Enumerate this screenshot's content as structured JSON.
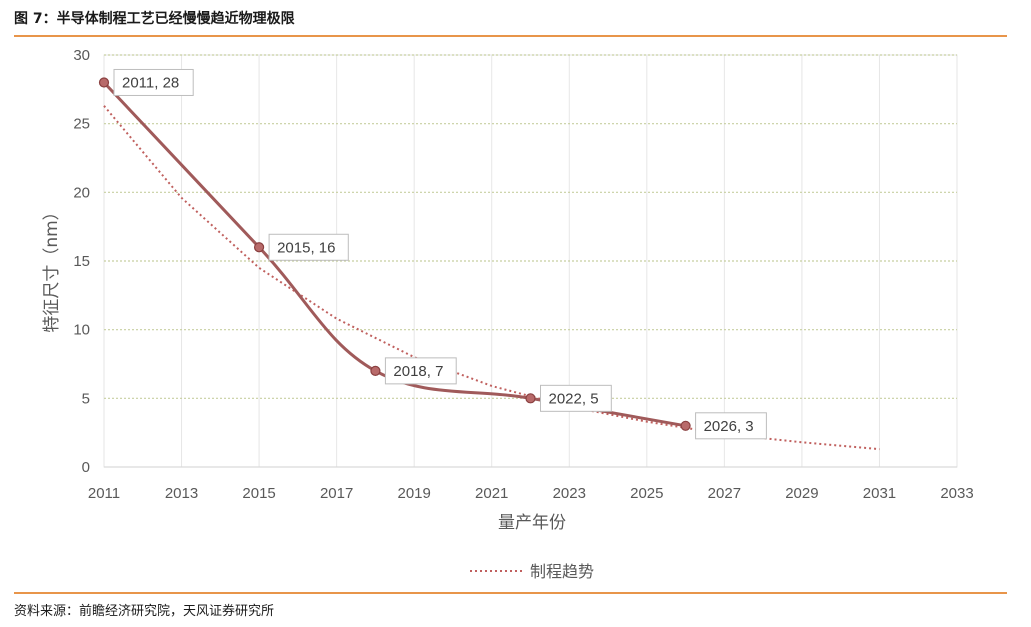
{
  "figure": {
    "title": "图 7：半导体制程工艺已经慢慢趋近物理极限",
    "source": "资料来源：前瞻经济研究院，天风证券研究所"
  },
  "chart_data": {
    "type": "line",
    "xlabel": "量产年份",
    "ylabel": "特征尺寸（nm）",
    "xlim": [
      2011,
      2033
    ],
    "ylim": [
      0,
      30
    ],
    "x_ticks": [
      "2011",
      "2013",
      "2015",
      "2017",
      "2019",
      "2021",
      "2023",
      "2025",
      "2027",
      "2029",
      "2031",
      "2033"
    ],
    "y_ticks": [
      "0",
      "5",
      "10",
      "15",
      "20",
      "25",
      "30"
    ],
    "grid": true,
    "series": [
      {
        "style": "solid-with-markers",
        "color": "#a05a5a",
        "x": [
          2011,
          2015,
          2018,
          2022,
          2026
        ],
        "y": [
          28,
          16,
          7,
          5,
          3
        ],
        "labels": [
          "2011, 28",
          "2015, 16",
          "2018, 7",
          "2022, 5",
          "2026, 3"
        ]
      },
      {
        "name": "制程趋势",
        "style": "dotted",
        "color": "#c0605e",
        "x": [
          2011,
          2013,
          2015,
          2017,
          2019,
          2021,
          2023,
          2025,
          2027,
          2029,
          2031
        ],
        "y": [
          26.3,
          19.6,
          14.5,
          10.8,
          8.0,
          5.9,
          4.4,
          3.3,
          2.4,
          1.8,
          1.3
        ]
      }
    ],
    "legend_position": "bottom-center"
  }
}
